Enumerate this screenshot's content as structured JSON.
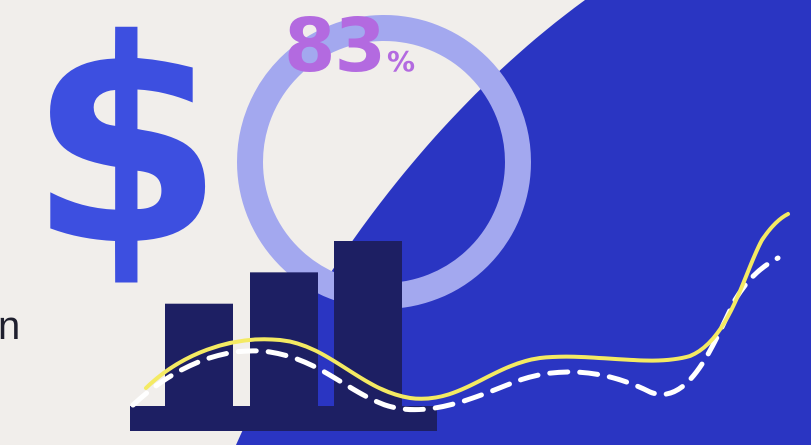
{
  "colors": {
    "background": "#f1eeeb",
    "panel_blue": "#2a35c2",
    "dollar_blue": "#3d4fe0",
    "ring": "#a3a8ef",
    "percent_text": "#b36ae0",
    "bars_dark": "#1d1f63",
    "bar_accent": "#2a35c2",
    "line_yellow": "#f4ea63",
    "line_dashed": "#ffffff"
  },
  "icons": {
    "currency": "dollar-sign-icon"
  },
  "dollar_glyph": "$",
  "partial_text": "n",
  "progress": {
    "value": "83",
    "unit": "%",
    "fraction": 0.83
  },
  "bars": {
    "relative_heights": [
      0.62,
      0.81,
      1.0
    ]
  }
}
